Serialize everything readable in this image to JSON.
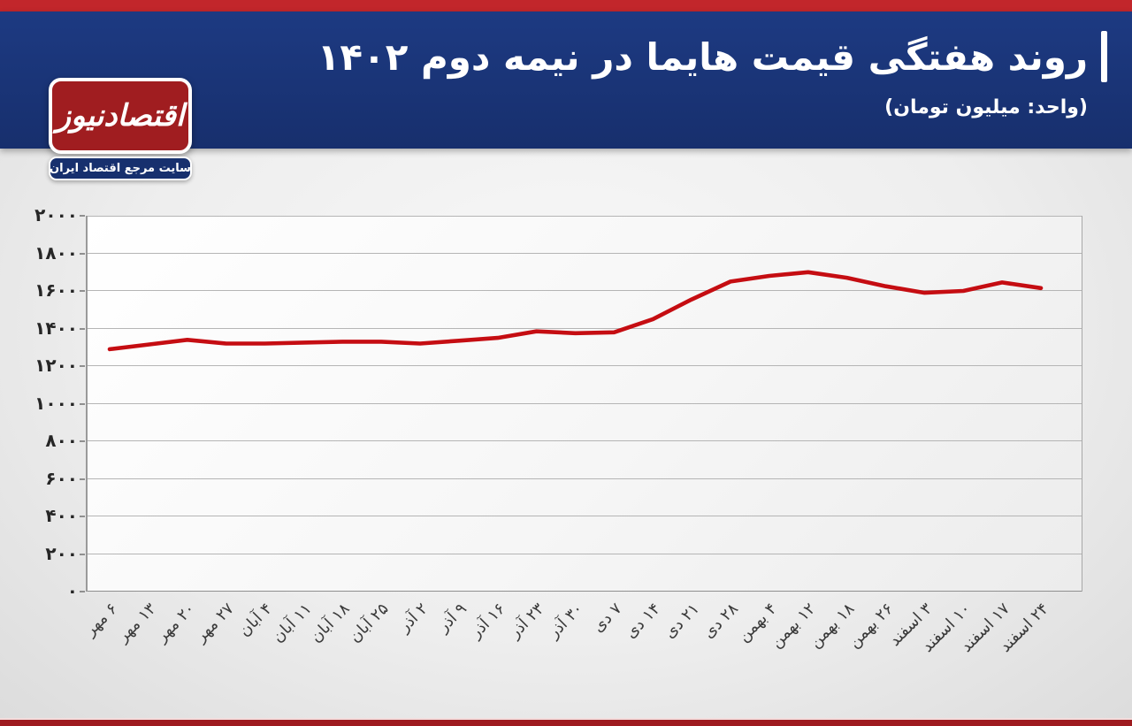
{
  "header": {
    "title": "روند هفتگی قیمت هایما در نیمه دوم ۱۴۰۲",
    "unit": "(واحد: میلیون تومان)"
  },
  "logo": {
    "name": "اقتصادنیوز",
    "tagline": "سایت مرجع اقتصاد ایران"
  },
  "colors": {
    "top_stripe_red": "#c2262b",
    "banner_blue": "#1a3578",
    "logo_red": "#a01d20",
    "line_red": "#c50d12",
    "bottom_stripe_red": "#9e1b1f",
    "gridline_gray": "#b5b5b5"
  },
  "chart_data": {
    "type": "line",
    "title": "روند هفتگی قیمت هایما در نیمه دوم ۱۴۰۲",
    "unit_label": "(واحد: میلیون تومان)",
    "categories": [
      "۶ مهر",
      "۱۳ مهر",
      "۲۰ مهر",
      "۲۷ مهر",
      "۴ آبان",
      "۱۱ آبان",
      "۱۸ آبان",
      "۲۵ آبان",
      "۲ آذر",
      "۹ آذر",
      "۱۶ آذر",
      "۲۳ آذر",
      "۳۰ آذر",
      "۷ دی",
      "۱۴ دی",
      "۲۱ دی",
      "۲۸ دی",
      "۴ بهمن",
      "۱۲ بهمن",
      "۱۸ بهمن",
      "۲۶ بهمن",
      "۳ اسفند",
      "۱۰ اسفند",
      "۱۷ اسفند",
      "۲۴ اسفند"
    ],
    "values": [
      1290,
      1315,
      1340,
      1320,
      1320,
      1325,
      1330,
      1330,
      1320,
      1335,
      1350,
      1385,
      1375,
      1380,
      1450,
      1555,
      1650,
      1680,
      1700,
      1670,
      1625,
      1590,
      1600,
      1645,
      1615
    ],
    "ylim": [
      0,
      2000
    ],
    "y_tick_step": 200,
    "y_tick_labels": [
      "۰",
      "۲۰۰",
      "۴۰۰",
      "۶۰۰",
      "۸۰۰",
      "۱۰۰۰",
      "۱۲۰۰",
      "۱۴۰۰",
      "۱۶۰۰",
      "۱۸۰۰",
      "۲۰۰۰"
    ],
    "grid": "horizontal",
    "legend": "none",
    "line_color": "#c50d12"
  }
}
